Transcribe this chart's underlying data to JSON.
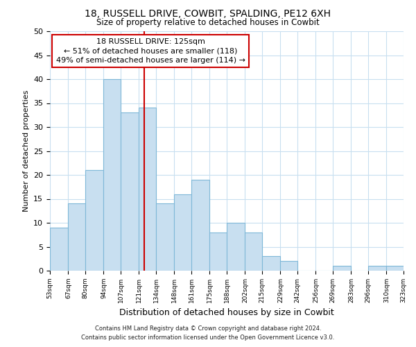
{
  "title": "18, RUSSELL DRIVE, COWBIT, SPALDING, PE12 6XH",
  "subtitle": "Size of property relative to detached houses in Cowbit",
  "xlabel": "Distribution of detached houses by size in Cowbit",
  "ylabel": "Number of detached properties",
  "bar_color": "#c8dff0",
  "bar_edge_color": "#7fb8d8",
  "grid_color": "#c8dff0",
  "ref_line_x": 125,
  "ref_line_color": "#cc0000",
  "annotation_title": "18 RUSSELL DRIVE: 125sqm",
  "annotation_line1": "← 51% of detached houses are smaller (118)",
  "annotation_line2": "49% of semi-detached houses are larger (114) →",
  "bins": [
    53,
    67,
    80,
    94,
    107,
    121,
    134,
    148,
    161,
    175,
    188,
    202,
    215,
    229,
    242,
    256,
    269,
    283,
    296,
    310,
    323
  ],
  "counts": [
    9,
    14,
    21,
    40,
    33,
    34,
    14,
    16,
    19,
    8,
    10,
    8,
    3,
    2,
    0,
    0,
    1,
    0,
    1,
    1
  ],
  "ylim": [
    0,
    50
  ],
  "yticks": [
    0,
    5,
    10,
    15,
    20,
    25,
    30,
    35,
    40,
    45,
    50
  ],
  "footer_line1": "Contains HM Land Registry data © Crown copyright and database right 2024.",
  "footer_line2": "Contains public sector information licensed under the Open Government Licence v3.0.",
  "tick_labels": [
    "53sqm",
    "67sqm",
    "80sqm",
    "94sqm",
    "107sqm",
    "121sqm",
    "134sqm",
    "148sqm",
    "161sqm",
    "175sqm",
    "188sqm",
    "202sqm",
    "215sqm",
    "229sqm",
    "242sqm",
    "256sqm",
    "269sqm",
    "283sqm",
    "296sqm",
    "310sqm",
    "323sqm"
  ]
}
